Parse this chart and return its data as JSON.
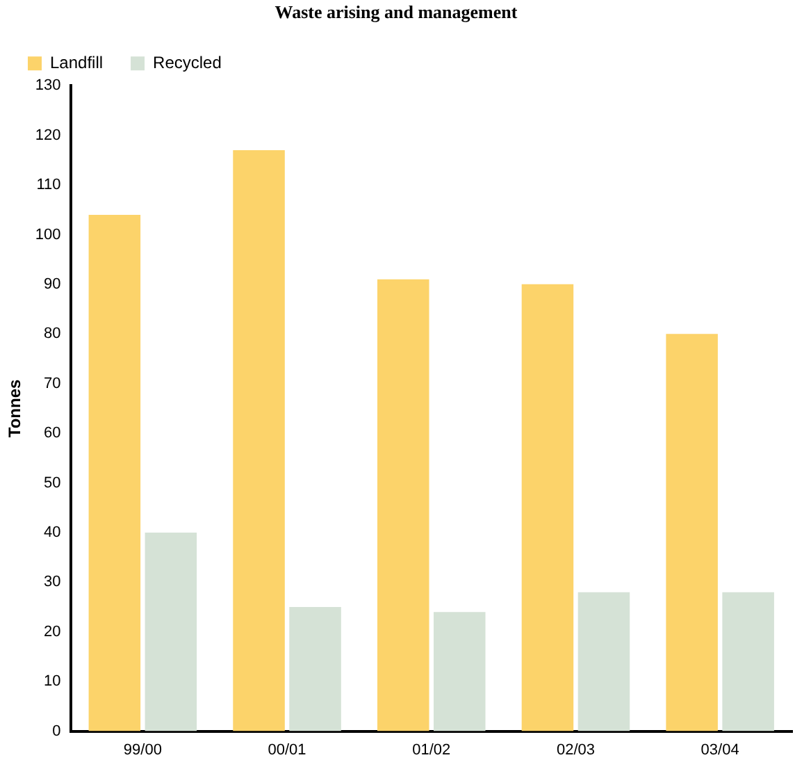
{
  "chart_data": {
    "type": "bar",
    "title": "Waste arising and management",
    "ylabel": "Tonnes",
    "categories": [
      "99/00",
      "00/01",
      "01/02",
      "02/03",
      "03/04"
    ],
    "series": [
      {
        "name": "Landfill",
        "color": "#fcd36a",
        "values": [
          104,
          117,
          91,
          90,
          80
        ]
      },
      {
        "name": "Recycled",
        "color": "#d5e2d6",
        "values": [
          40,
          25,
          24,
          28,
          28
        ]
      }
    ],
    "ylim": [
      0,
      130
    ],
    "yticks": [
      0,
      10,
      20,
      30,
      40,
      50,
      60,
      70,
      80,
      90,
      100,
      110,
      120,
      130
    ],
    "grid": false,
    "legend": "top left"
  }
}
